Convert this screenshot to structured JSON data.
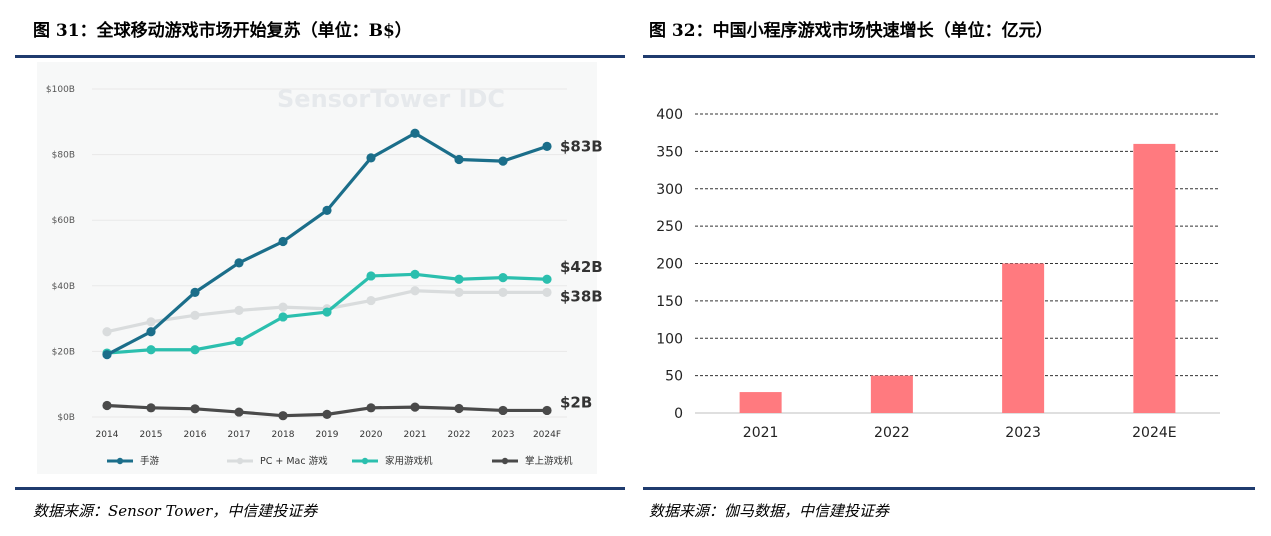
{
  "left": {
    "figure_title": "图 31：全球移动游戏市场开始复苏（单位：B$）",
    "source": "数据来源：Sensor Tower，中信建投证券",
    "watermark": "SensorTower  IDC",
    "colors": {
      "mobile": "#1b6e8a",
      "pc": "#d9dcdd",
      "console": "#2bbfae",
      "handheld": "#4a4a4a",
      "grid": "#e8e8e8",
      "watermark": "#e6e9ec",
      "tick": "#555555"
    },
    "chart_data": {
      "type": "line",
      "x": [
        "2014",
        "2015",
        "2016",
        "2017",
        "2018",
        "2019",
        "2020",
        "2021",
        "2022",
        "2023",
        "2024F"
      ],
      "y_ticks": [
        "$0B",
        "$20B",
        "$40B",
        "$60B",
        "$80B",
        "$100B"
      ],
      "ylim": [
        0,
        100
      ],
      "grid": "horizontal",
      "legend_position": "bottom",
      "series": [
        {
          "name": "手游",
          "color": "#1b6e8a",
          "values": [
            19,
            26,
            38,
            47,
            53.5,
            63,
            79,
            86.5,
            78.5,
            78,
            82.5
          ]
        },
        {
          "name": "PC + Mac 游戏",
          "color": "#d9dcdd",
          "values": [
            26,
            29,
            31,
            32.5,
            33.5,
            33,
            35.5,
            38.5,
            38,
            38,
            38
          ]
        },
        {
          "name": "家用游戏机",
          "color": "#2bbfae",
          "values": [
            19.5,
            20.5,
            20.5,
            23,
            30.5,
            32,
            43,
            43.5,
            42,
            42.5,
            42
          ]
        },
        {
          "name": "掌上游戏机",
          "color": "#4a4a4a",
          "values": [
            3.5,
            2.8,
            2.5,
            1.5,
            0.4,
            0.8,
            2.8,
            3,
            2.6,
            2,
            2
          ]
        }
      ],
      "end_labels": [
        "$83B",
        "$38B",
        "$42B",
        "$2B"
      ]
    }
  },
  "right": {
    "figure_title": "图 32：中国小程序游戏市场快速增长（单位：亿元）",
    "source": "数据来源：伽马数据，中信建投证券",
    "colors": {
      "bar": "#ff7a7f",
      "grid": "#333333",
      "axis": "#bfbfbf"
    },
    "chart_data": {
      "type": "bar",
      "categories": [
        "2021",
        "2022",
        "2023",
        "2024E"
      ],
      "values": [
        28,
        50,
        200,
        360
      ],
      "ylim": [
        0,
        400
      ],
      "y_ticks": [
        "0",
        "50",
        "100",
        "150",
        "200",
        "250",
        "300",
        "350",
        "400"
      ],
      "grid": "horizontal dashed",
      "legend": "none"
    }
  }
}
